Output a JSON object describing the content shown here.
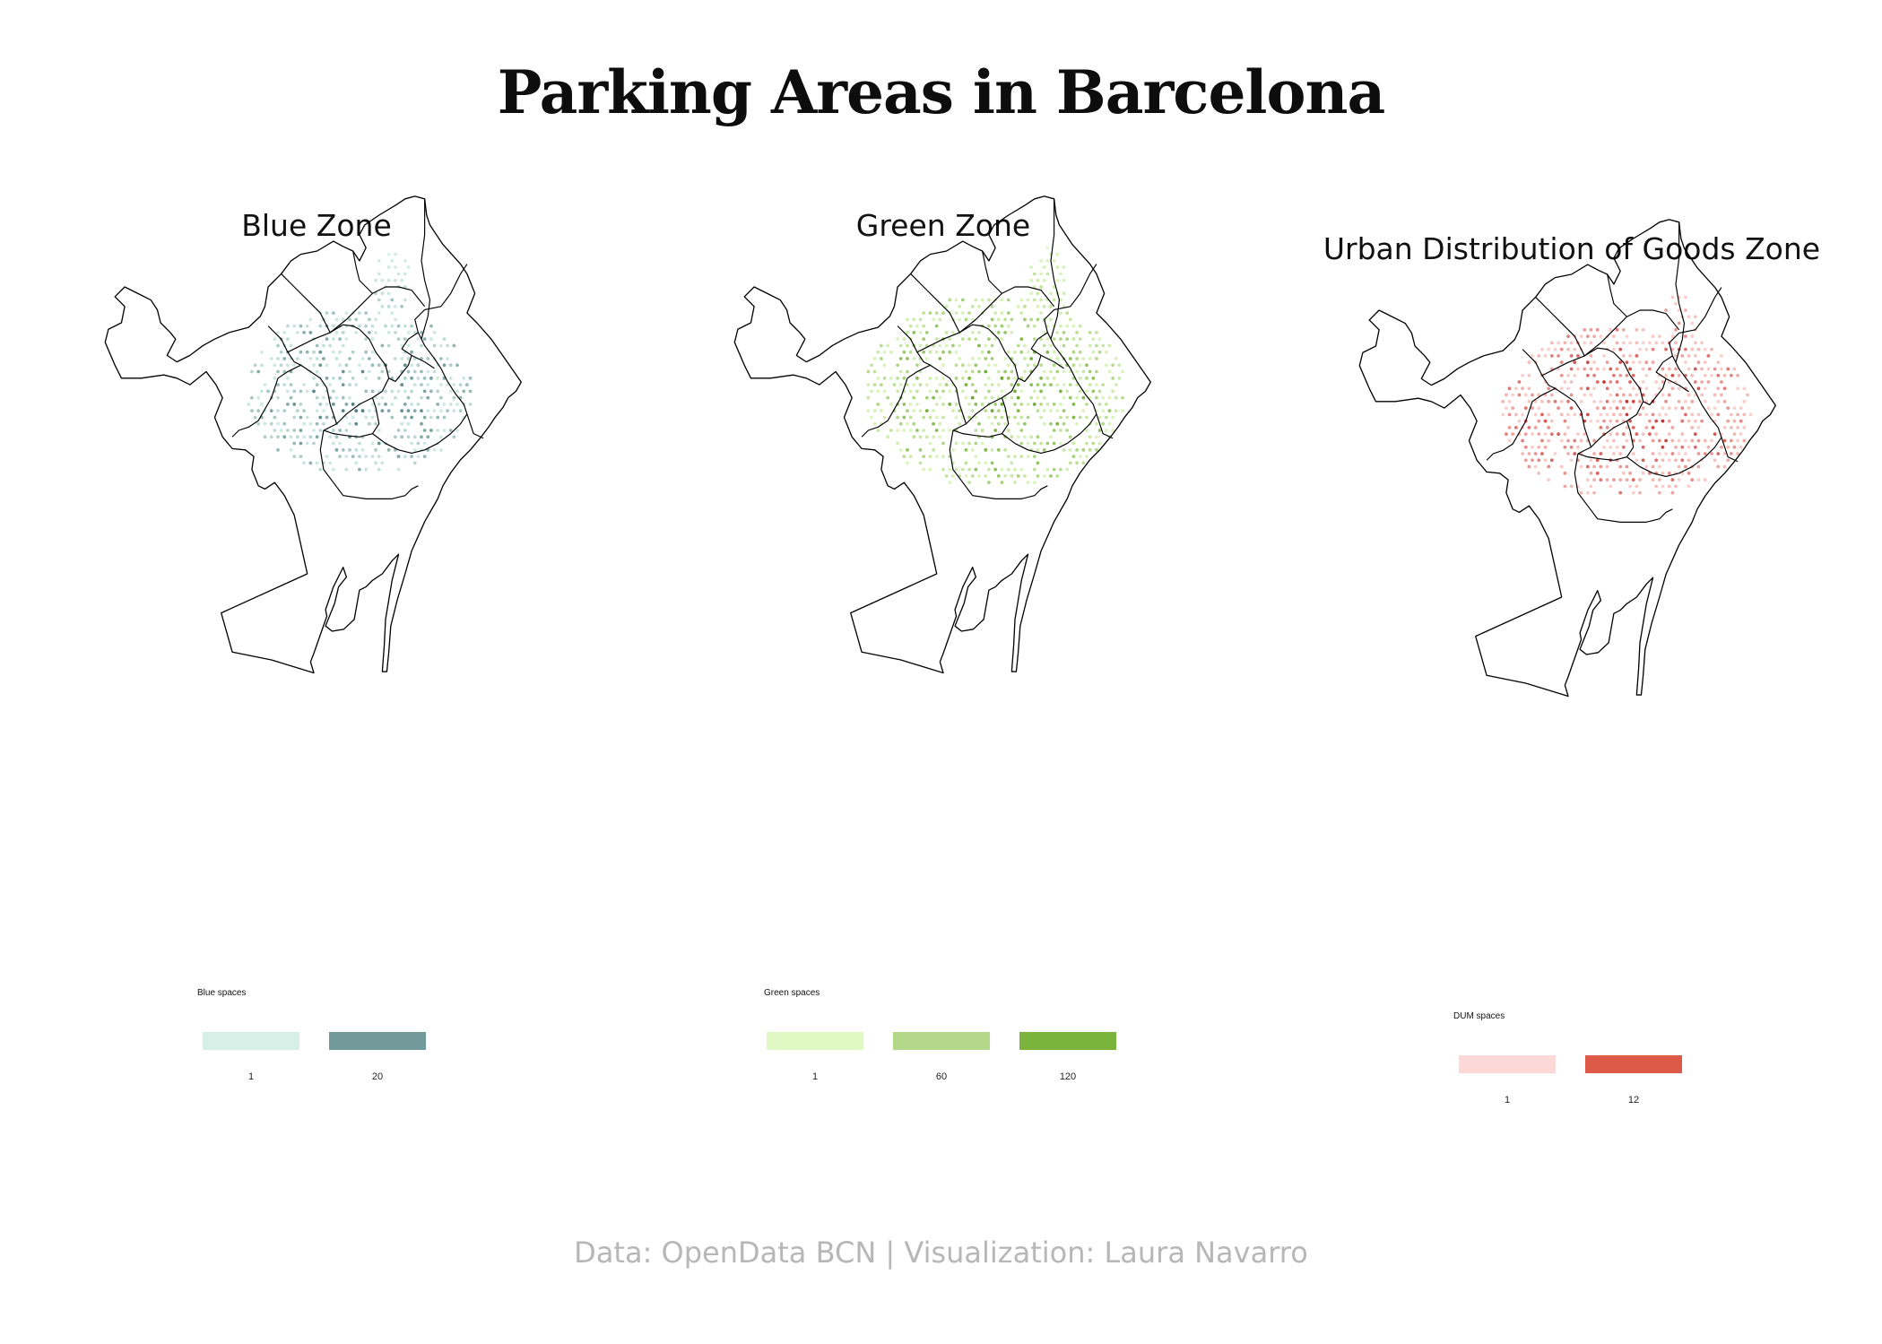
{
  "title": "Parking Areas in Barcelona",
  "caption": "Data: OpenData BCN | Visualization: Laura Navarro",
  "panels": [
    {
      "title": "Blue Zone",
      "legend_title": "Blue spaces",
      "legend": [
        {
          "value": "1",
          "color": "#d6f0e8"
        },
        {
          "value": "20",
          "color": "#739a9a"
        }
      ],
      "hex_color_low": "#d6f0e8",
      "hex_color_high": "#4f7f7f"
    },
    {
      "title": "Green Zone",
      "legend_title": "Green spaces",
      "legend": [
        {
          "value": "1",
          "color": "#e0f8c4"
        },
        {
          "value": "60",
          "color": "#b3d88a"
        },
        {
          "value": "120",
          "color": "#7ab43c"
        }
      ],
      "hex_color_low": "#e0f8c4",
      "hex_color_high": "#6aa82e"
    },
    {
      "title": "Urban Distribution of Goods Zone",
      "legend_title": "DUM spaces",
      "legend": [
        {
          "value": "1",
          "color": "#fcd9d6"
        },
        {
          "value": "12",
          "color": "#dd5a48"
        }
      ],
      "hex_color_low": "#fcd9d6",
      "hex_color_high": "#c9302a"
    }
  ]
}
